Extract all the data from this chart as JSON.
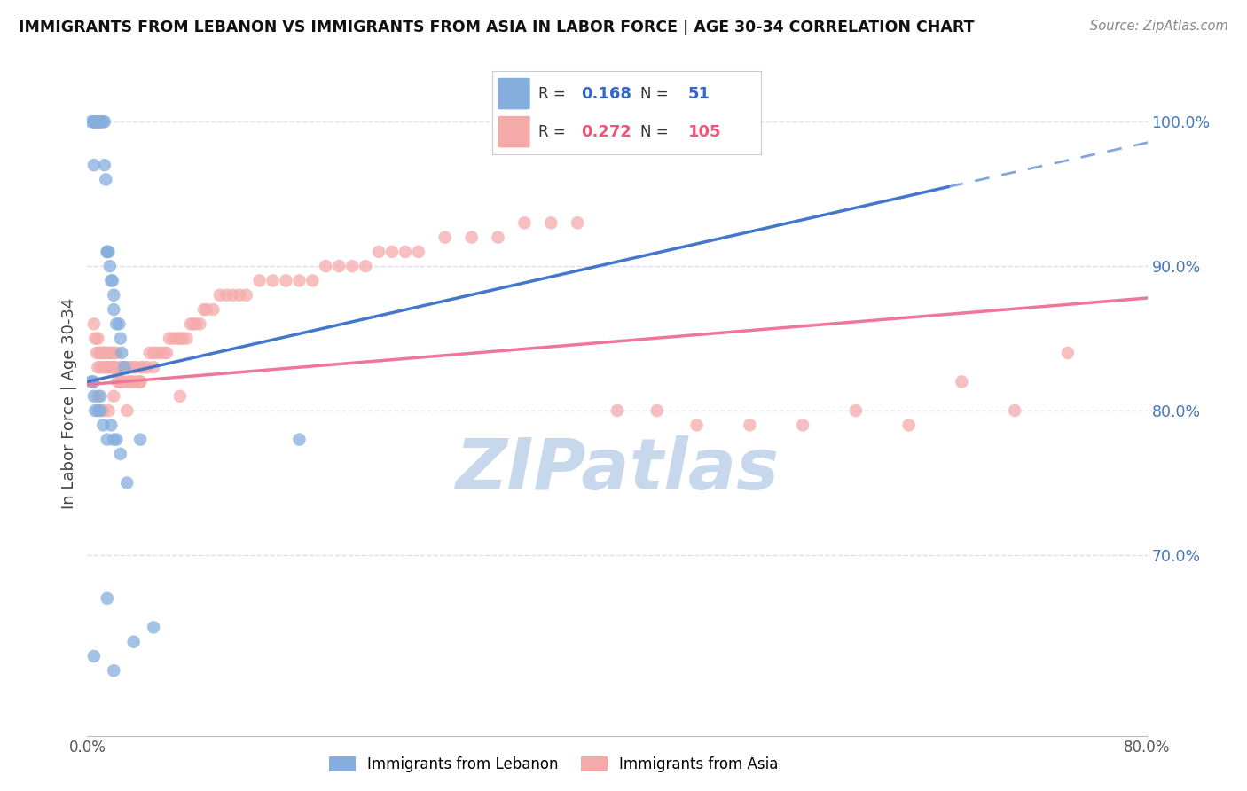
{
  "title": "IMMIGRANTS FROM LEBANON VS IMMIGRANTS FROM ASIA IN LABOR FORCE | AGE 30-34 CORRELATION CHART",
  "source": "Source: ZipAtlas.com",
  "ylabel": "In Labor Force | Age 30-34",
  "xlim": [
    0.0,
    0.8
  ],
  "ylim": [
    0.575,
    1.035
  ],
  "y_ticks_right": [
    0.7,
    0.8,
    0.9,
    1.0
  ],
  "y_tick_labels_right": [
    "70.0%",
    "80.0%",
    "90.0%",
    "100.0%"
  ],
  "legend_r_blue": "0.168",
  "legend_n_blue": "51",
  "legend_r_pink": "0.272",
  "legend_n_pink": "105",
  "blue_color": "#85AEDD",
  "pink_color": "#F5AAAA",
  "blue_line_color": "#4477CC",
  "pink_line_color": "#EE7799",
  "blue_line": [
    0.0,
    0.82,
    0.65,
    0.955
  ],
  "blue_dashed": [
    0.65,
    0.955,
    0.92,
    1.01
  ],
  "pink_line": [
    0.0,
    0.818,
    0.8,
    0.878
  ],
  "blue_scatter_x": [
    0.003,
    0.005,
    0.005,
    0.005,
    0.005,
    0.006,
    0.007,
    0.007,
    0.008,
    0.009,
    0.01,
    0.01,
    0.01,
    0.012,
    0.013,
    0.013,
    0.014,
    0.015,
    0.015,
    0.016,
    0.017,
    0.018,
    0.019,
    0.02,
    0.02,
    0.022,
    0.024,
    0.025,
    0.026,
    0.028,
    0.003,
    0.004,
    0.005,
    0.006,
    0.008,
    0.01,
    0.012,
    0.015,
    0.018,
    0.02,
    0.022,
    0.025,
    0.03,
    0.035,
    0.04,
    0.05,
    0.16,
    0.005,
    0.01,
    0.015,
    0.02
  ],
  "blue_scatter_y": [
    1.0,
    1.0,
    1.0,
    1.0,
    0.97,
    1.0,
    1.0,
    1.0,
    1.0,
    1.0,
    1.0,
    1.0,
    1.0,
    1.0,
    1.0,
    0.97,
    0.96,
    0.91,
    0.91,
    0.91,
    0.9,
    0.89,
    0.89,
    0.88,
    0.87,
    0.86,
    0.86,
    0.85,
    0.84,
    0.83,
    0.82,
    0.82,
    0.81,
    0.8,
    0.8,
    0.8,
    0.79,
    0.78,
    0.79,
    0.78,
    0.78,
    0.77,
    0.75,
    0.64,
    0.78,
    0.65,
    0.78,
    0.63,
    0.81,
    0.67,
    0.62
  ],
  "pink_scatter_x": [
    0.005,
    0.006,
    0.007,
    0.008,
    0.008,
    0.009,
    0.01,
    0.01,
    0.012,
    0.013,
    0.013,
    0.014,
    0.015,
    0.015,
    0.016,
    0.017,
    0.018,
    0.018,
    0.019,
    0.02,
    0.02,
    0.021,
    0.022,
    0.023,
    0.025,
    0.025,
    0.026,
    0.027,
    0.028,
    0.029,
    0.03,
    0.031,
    0.032,
    0.033,
    0.035,
    0.035,
    0.036,
    0.038,
    0.04,
    0.04,
    0.042,
    0.045,
    0.047,
    0.05,
    0.052,
    0.055,
    0.058,
    0.06,
    0.062,
    0.065,
    0.068,
    0.07,
    0.072,
    0.075,
    0.078,
    0.08,
    0.082,
    0.085,
    0.088,
    0.09,
    0.095,
    0.1,
    0.105,
    0.11,
    0.115,
    0.12,
    0.13,
    0.14,
    0.15,
    0.16,
    0.17,
    0.18,
    0.19,
    0.2,
    0.21,
    0.22,
    0.23,
    0.24,
    0.25,
    0.27,
    0.29,
    0.31,
    0.33,
    0.35,
    0.37,
    0.4,
    0.43,
    0.46,
    0.5,
    0.54,
    0.58,
    0.62,
    0.66,
    0.7,
    0.74,
    0.005,
    0.008,
    0.012,
    0.016,
    0.02,
    0.025,
    0.03,
    0.04,
    0.05,
    0.07
  ],
  "pink_scatter_y": [
    0.86,
    0.85,
    0.84,
    0.85,
    0.83,
    0.84,
    0.84,
    0.83,
    0.84,
    0.83,
    0.84,
    0.83,
    0.84,
    0.83,
    0.83,
    0.84,
    0.83,
    0.84,
    0.83,
    0.84,
    0.83,
    0.83,
    0.84,
    0.82,
    0.83,
    0.82,
    0.83,
    0.83,
    0.82,
    0.83,
    0.83,
    0.82,
    0.83,
    0.82,
    0.83,
    0.82,
    0.83,
    0.82,
    0.83,
    0.82,
    0.83,
    0.83,
    0.84,
    0.83,
    0.84,
    0.84,
    0.84,
    0.84,
    0.85,
    0.85,
    0.85,
    0.85,
    0.85,
    0.85,
    0.86,
    0.86,
    0.86,
    0.86,
    0.87,
    0.87,
    0.87,
    0.88,
    0.88,
    0.88,
    0.88,
    0.88,
    0.89,
    0.89,
    0.89,
    0.89,
    0.89,
    0.9,
    0.9,
    0.9,
    0.9,
    0.91,
    0.91,
    0.91,
    0.91,
    0.92,
    0.92,
    0.92,
    0.93,
    0.93,
    0.93,
    0.8,
    0.8,
    0.79,
    0.79,
    0.79,
    0.8,
    0.79,
    0.82,
    0.8,
    0.84,
    0.82,
    0.81,
    0.8,
    0.8,
    0.81,
    0.82,
    0.8,
    0.82,
    0.84,
    0.81
  ],
  "watermark": "ZIPatlas",
  "watermark_color": "#C8D8EC",
  "background_color": "#FFFFFF",
  "grid_color": "#DDDDEE"
}
